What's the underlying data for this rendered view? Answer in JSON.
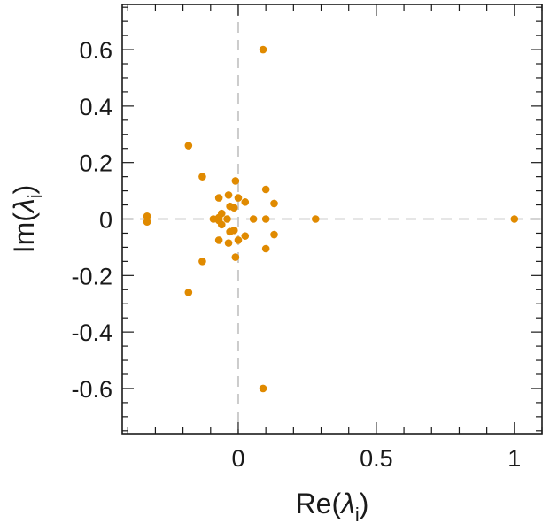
{
  "chart_data": {
    "type": "scatter",
    "xlabel": {
      "base": "Re(",
      "symbol": "λ",
      "subscript": "i",
      "close": ")"
    },
    "ylabel": {
      "base": "Im(",
      "symbol": "λ",
      "subscript": "i",
      "close": ")"
    },
    "xlim": [
      -0.42,
      1.1
    ],
    "ylim": [
      -0.76,
      0.76
    ],
    "x_ticks": [
      {
        "value": 0,
        "label": "0"
      },
      {
        "value": 0.5,
        "label": "0.5"
      },
      {
        "value": 1,
        "label": "1"
      }
    ],
    "y_ticks": [
      {
        "value": 0.6,
        "label": "0.6"
      },
      {
        "value": 0.4,
        "label": "0.4"
      },
      {
        "value": 0.2,
        "label": "0.2"
      },
      {
        "value": 0,
        "label": "0"
      },
      {
        "value": -0.2,
        "label": "-0.2"
      },
      {
        "value": -0.4,
        "label": "-0.4"
      },
      {
        "value": -0.6,
        "label": "-0.6"
      }
    ],
    "x_minor_step": 0.1,
    "y_minor_step": 0.05,
    "zero_lines": true,
    "grid": false,
    "marker_color": "#e08a00",
    "points": [
      {
        "x": 1.0,
        "y": 0.0
      },
      {
        "x": 0.28,
        "y": 0.0
      },
      {
        "x": 0.09,
        "y": 0.6
      },
      {
        "x": 0.09,
        "y": -0.6
      },
      {
        "x": -0.18,
        "y": 0.26
      },
      {
        "x": -0.18,
        "y": -0.26
      },
      {
        "x": -0.33,
        "y": 0.01
      },
      {
        "x": -0.33,
        "y": -0.01
      },
      {
        "x": -0.13,
        "y": 0.15
      },
      {
        "x": -0.13,
        "y": -0.15
      },
      {
        "x": 0.1,
        "y": 0.105
      },
      {
        "x": 0.1,
        "y": -0.105
      },
      {
        "x": 0.13,
        "y": 0.055
      },
      {
        "x": 0.13,
        "y": -0.055
      },
      {
        "x": 0.1,
        "y": 0.0
      },
      {
        "x": 0.055,
        "y": 0.0
      },
      {
        "x": -0.01,
        "y": 0.135
      },
      {
        "x": -0.01,
        "y": -0.135
      },
      {
        "x": -0.035,
        "y": 0.085
      },
      {
        "x": -0.035,
        "y": -0.085
      },
      {
        "x": 0.0,
        "y": 0.075
      },
      {
        "x": 0.0,
        "y": -0.075
      },
      {
        "x": 0.025,
        "y": 0.06
      },
      {
        "x": 0.025,
        "y": -0.06
      },
      {
        "x": -0.07,
        "y": 0.075
      },
      {
        "x": -0.07,
        "y": -0.075
      },
      {
        "x": -0.03,
        "y": 0.045
      },
      {
        "x": -0.03,
        "y": -0.045
      },
      {
        "x": -0.015,
        "y": 0.04
      },
      {
        "x": -0.015,
        "y": -0.04
      },
      {
        "x": -0.06,
        "y": 0.02
      },
      {
        "x": -0.06,
        "y": -0.02
      },
      {
        "x": -0.07,
        "y": 0.005
      },
      {
        "x": -0.07,
        "y": -0.005
      },
      {
        "x": -0.09,
        "y": 0.0
      },
      {
        "x": -0.04,
        "y": 0.0
      }
    ]
  }
}
